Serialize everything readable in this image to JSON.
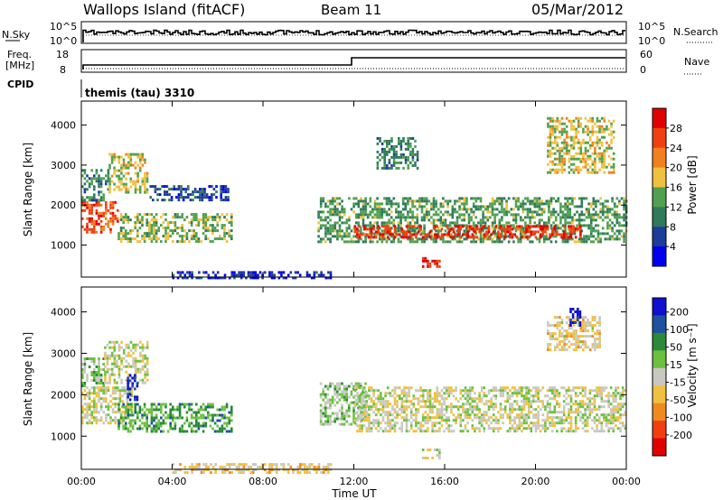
{
  "header": {
    "station": "Wallops Island (fitACF)",
    "beam": "Beam 11",
    "date": "05/Mar/2012"
  },
  "top_panels": {
    "noise_left_label": "N.Sky",
    "noise_right_label": "N.Search",
    "noise_left_ticks": [
      "10^5",
      "10^0"
    ],
    "noise_right_ticks": [
      "10^5",
      "10^0"
    ],
    "freq_label_line1": "Freq.",
    "freq_label_line2": "[MHz]",
    "freq_ticks": [
      "18",
      "8"
    ],
    "nave_label": "Nave",
    "nave_ticks": [
      "60",
      "0"
    ],
    "cpid_label": "CPID",
    "cpid_text": "themis (tau) 3310"
  },
  "colors": {
    "power_scale": [
      "#0000ee",
      "#1e3c9a",
      "#2e7a5a",
      "#50a050",
      "#f0c040",
      "#f08020",
      "#f04010",
      "#e00000"
    ],
    "velocity_scale": [
      "#e00000",
      "#f04010",
      "#f08a20",
      "#f0c040",
      "#c8c8c0",
      "#6cc040",
      "#2a8a3a",
      "#2050a0",
      "#1010d0"
    ]
  },
  "chart_data": [
    {
      "type": "heatmap",
      "name": "power",
      "xlabel": "",
      "ylabel": "Slant Range [km]",
      "xlim": [
        "00:00",
        "00:00"
      ],
      "ylim": [
        200,
        4600
      ],
      "y_ticks": [
        "1000",
        "2000",
        "3000",
        "4000"
      ],
      "colorbar": {
        "label": "Power [dB]",
        "ticks": [
          "28",
          "24",
          "20",
          "16",
          "12",
          "8",
          "4"
        ],
        "range": [
          0,
          30
        ]
      },
      "regions": [
        {
          "t0": 0.0,
          "t1": 1.6,
          "r0": 1300,
          "r1": 2100,
          "value": 24
        },
        {
          "t0": 0.0,
          "t1": 1.2,
          "r0": 2100,
          "r1": 2900,
          "value": 10
        },
        {
          "t0": 1.2,
          "t1": 2.9,
          "r0": 2300,
          "r1": 3300,
          "value": 16
        },
        {
          "t0": 1.6,
          "t1": 6.6,
          "r0": 1100,
          "r1": 1800,
          "value": 14
        },
        {
          "t0": 3.0,
          "t1": 6.5,
          "r0": 2100,
          "r1": 2500,
          "value": 6
        },
        {
          "t0": 10.4,
          "t1": 24.0,
          "r0": 1100,
          "r1": 2200,
          "value": 12
        },
        {
          "t0": 12.0,
          "t1": 22.0,
          "r0": 1200,
          "r1": 1500,
          "value": 26
        },
        {
          "t0": 13.0,
          "t1": 14.8,
          "r0": 2900,
          "r1": 3700,
          "value": 10
        },
        {
          "t0": 15.0,
          "t1": 15.8,
          "r0": 450,
          "r1": 700,
          "value": 26
        },
        {
          "t0": 20.5,
          "t1": 23.5,
          "r0": 2800,
          "r1": 4200,
          "value": 16
        },
        {
          "t0": 4.0,
          "t1": 11.0,
          "r0": 150,
          "r1": 350,
          "value": 4
        }
      ]
    },
    {
      "type": "heatmap",
      "name": "velocity",
      "xlabel": "Time UT",
      "ylabel": "Slant Range [km]",
      "xlim": [
        "00:00",
        "00:00"
      ],
      "ylim": [
        200,
        4600
      ],
      "x_ticks": [
        "00:00",
        "04:00",
        "08:00",
        "12:00",
        "16:00",
        "20:00",
        "00:00"
      ],
      "y_ticks": [
        "1000",
        "2000",
        "3000",
        "4000"
      ],
      "colorbar": {
        "label": "Velocity [m s⁻¹]",
        "ticks": [
          "200",
          "100",
          "50",
          "15",
          "-15",
          "-50",
          "-100",
          "-200"
        ],
        "range": [
          -250,
          250
        ]
      },
      "regions": [
        {
          "t0": 0.0,
          "t1": 2.2,
          "r0": 1300,
          "r1": 2200,
          "value": 0
        },
        {
          "t0": 0.0,
          "t1": 1.0,
          "r0": 2200,
          "r1": 2900,
          "value": 40
        },
        {
          "t0": 1.0,
          "t1": 2.9,
          "r0": 2300,
          "r1": 3300,
          "value": 0
        },
        {
          "t0": 2.0,
          "t1": 2.5,
          "r0": 1900,
          "r1": 2500,
          "value": 220
        },
        {
          "t0": 1.6,
          "t1": 6.6,
          "r0": 1100,
          "r1": 1800,
          "value": 90
        },
        {
          "t0": 10.5,
          "t1": 12.5,
          "r0": 1300,
          "r1": 2300,
          "value": 40
        },
        {
          "t0": 12.0,
          "t1": 24.0,
          "r0": 1100,
          "r1": 2200,
          "value": 0
        },
        {
          "t0": 20.5,
          "t1": 22.8,
          "r0": 3100,
          "r1": 3900,
          "value": -30
        },
        {
          "t0": 21.5,
          "t1": 22.0,
          "r0": 3700,
          "r1": 4100,
          "value": 220
        },
        {
          "t0": 15.0,
          "t1": 15.8,
          "r0": 450,
          "r1": 700,
          "value": 0
        },
        {
          "t0": 4.0,
          "t1": 11.0,
          "r0": 150,
          "r1": 350,
          "value": -40
        }
      ]
    }
  ]
}
